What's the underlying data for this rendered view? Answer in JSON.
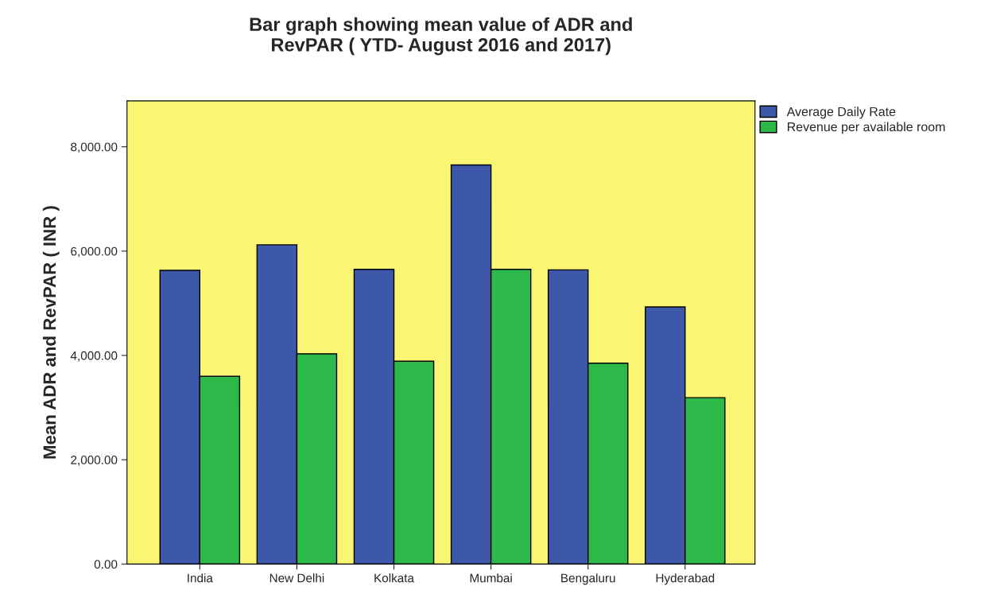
{
  "chart_data": {
    "type": "bar",
    "title": "Bar graph showing mean value of ADR and\nRevPAR ( YTD- August 2016 and 2017)",
    "ylabel": "Mean ADR and RevPAR ( INR )",
    "categories": [
      "India",
      "New Delhi",
      "Kolkata",
      "Mumbai",
      "Bengaluru",
      "Hyderabad"
    ],
    "series": [
      {
        "name": "Average Daily Rate",
        "color": "#3d58a8",
        "values": [
          5630,
          6120,
          5650,
          7650,
          5640,
          4930
        ]
      },
      {
        "name": "Revenue per available room",
        "color": "#2db84a",
        "values": [
          3600,
          4030,
          3890,
          5650,
          3850,
          3190
        ]
      }
    ],
    "ylim": [
      0,
      8880
    ],
    "yticks": [
      {
        "value": 0,
        "label": "0.00"
      },
      {
        "value": 2000,
        "label": "2,000.00"
      },
      {
        "value": 4000,
        "label": "4,000.00"
      },
      {
        "value": 6000,
        "label": "6,000.00"
      },
      {
        "value": 8000,
        "label": "8,000.00"
      }
    ],
    "grid": false,
    "legend": "top right"
  }
}
